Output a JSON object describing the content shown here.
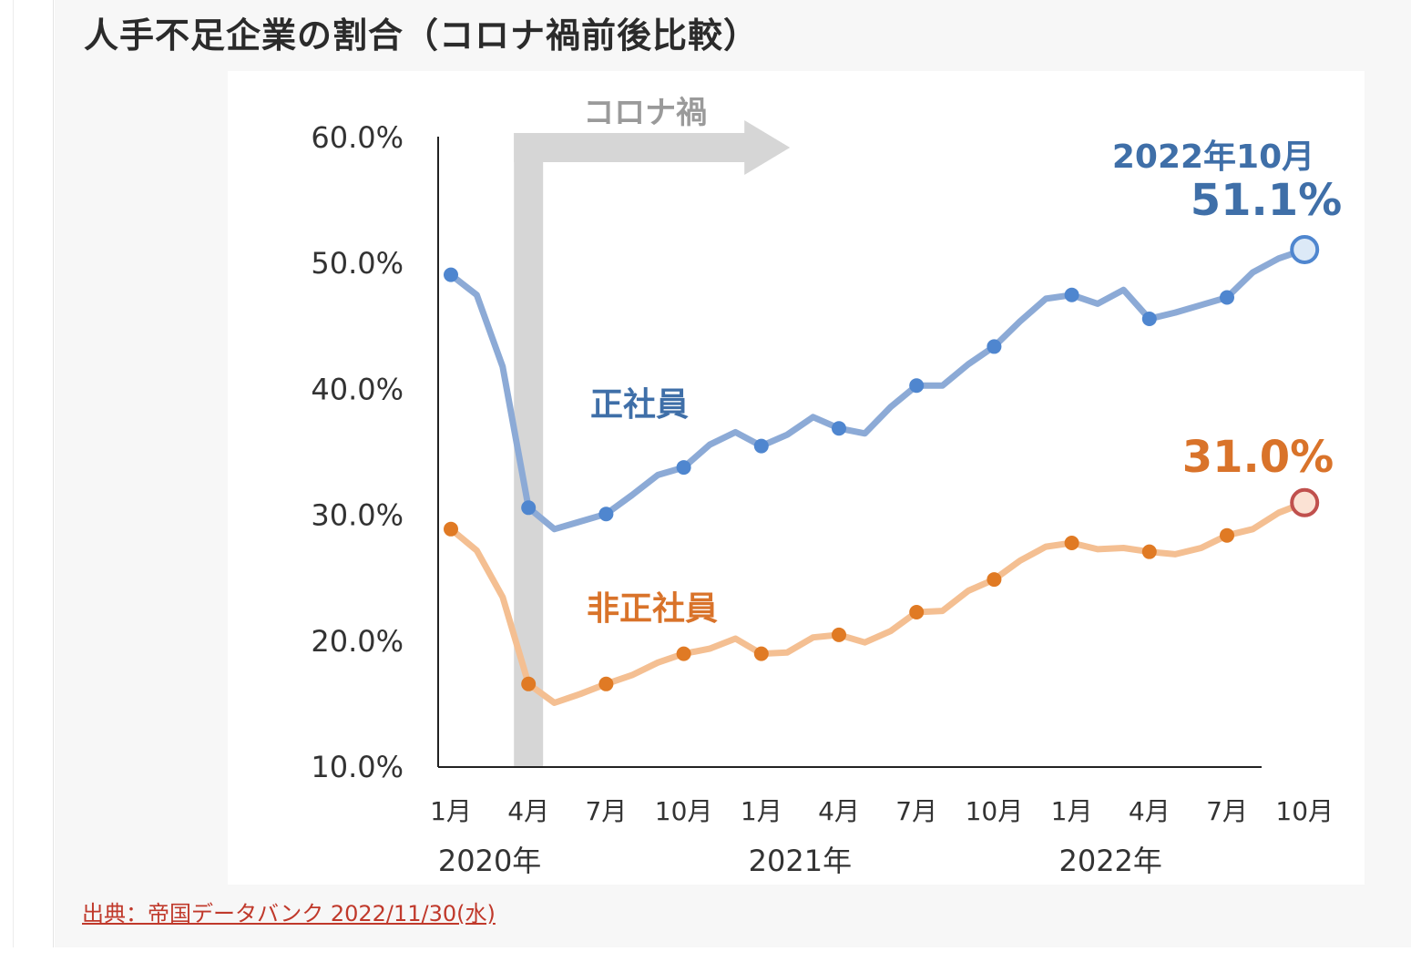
{
  "page": {
    "title": "人手不足企業の割合（コロナ禍前後比較）",
    "source": "出典：帝国データバンク 2022/11/30(水)"
  },
  "chart_data": {
    "type": "line",
    "title": "",
    "xlabel": "",
    "ylabel": "",
    "ylim": [
      10,
      60
    ],
    "y_ticks": [
      "10.0%",
      "20.0%",
      "30.0%",
      "40.0%",
      "50.0%",
      "60.0%"
    ],
    "x_tick_labels": [
      "1月",
      "4月",
      "7月",
      "10月",
      "1月",
      "4月",
      "7月",
      "10月",
      "1月",
      "4月",
      "7月",
      "10月"
    ],
    "year_labels": [
      {
        "label": "2020年",
        "month_index": 1.5
      },
      {
        "label": "2021年",
        "month_index": 13.5
      },
      {
        "label": "2022年",
        "month_index": 25.5
      }
    ],
    "grid": false,
    "corona_band": {
      "label": "コロナ禍",
      "start_month_index": 3,
      "color": "#d6d6d6"
    },
    "series": [
      {
        "name": "正社員",
        "color": "#8caad6",
        "marker_color": "#4f86cf",
        "label_color": "#3f6fa8",
        "values": [
          49.1,
          47.5,
          41.8,
          30.6,
          28.9,
          29.5,
          30.1,
          31.6,
          33.2,
          33.8,
          35.6,
          36.6,
          35.5,
          36.4,
          37.8,
          36.9,
          36.5,
          38.6,
          40.3,
          40.3,
          42.0,
          43.4,
          45.4,
          47.2,
          47.5,
          46.8,
          47.9,
          45.6,
          46.1,
          46.7,
          47.3,
          49.3,
          50.4,
          51.1
        ],
        "marker_indices": [
          0,
          3,
          6,
          9,
          12,
          15,
          18,
          21,
          24,
          27,
          30
        ]
      },
      {
        "name": "非正社員",
        "color": "#f4bf92",
        "marker_color": "#e07a24",
        "label_color": "#d9732a",
        "values": [
          28.9,
          27.2,
          23.5,
          16.6,
          15.1,
          15.8,
          16.6,
          17.3,
          18.3,
          19.0,
          19.4,
          20.2,
          19.0,
          19.1,
          20.3,
          20.5,
          19.9,
          20.8,
          22.3,
          22.4,
          24.0,
          24.9,
          26.4,
          27.5,
          27.8,
          27.3,
          27.4,
          27.1,
          26.9,
          27.4,
          28.4,
          28.9,
          30.2,
          31.0
        ],
        "marker_indices": [
          0,
          3,
          6,
          9,
          12,
          15,
          18,
          21,
          24,
          27,
          30
        ]
      }
    ],
    "annotations": {
      "end_date": "2022年10月",
      "regular_end_value": "51.1%",
      "nonregular_end_value": "31.0%"
    }
  }
}
